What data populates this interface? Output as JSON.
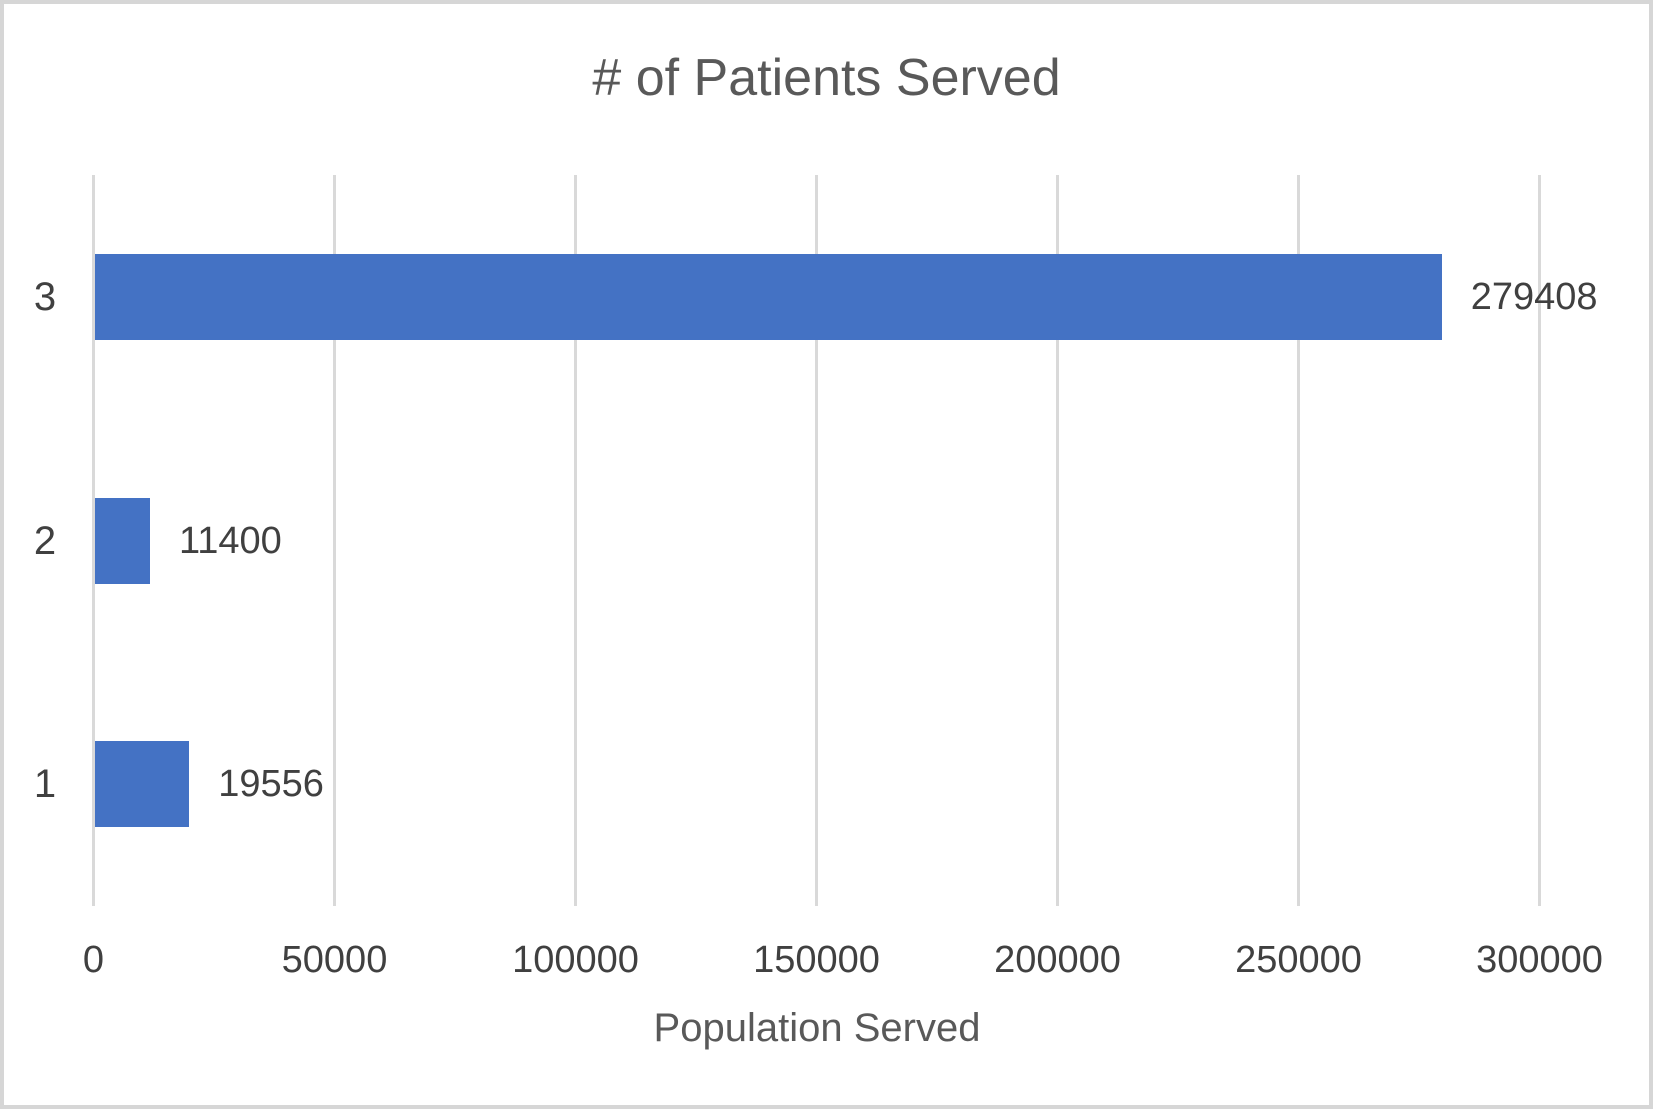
{
  "chart_data": {
    "type": "bar",
    "orientation": "horizontal",
    "title": "# of Patients Served",
    "xlabel": "Population Served",
    "ylabel": "",
    "categories": [
      "1",
      "2",
      "3"
    ],
    "values": [
      19556,
      11400,
      279408
    ],
    "data_labels": [
      19556,
      11400,
      279408
    ],
    "category_order_note": "category 3 displayed as top row, category 1 as bottom row",
    "xlim": [
      0,
      300000
    ],
    "xticks": [
      0,
      50000,
      100000,
      150000,
      200000,
      250000,
      300000
    ],
    "grid": "vertical-only",
    "legend": "none",
    "colors": {
      "bar": "#4472c4",
      "gridline": "#d9d9d9",
      "title_text": "#595959",
      "axis_title_text": "#595959",
      "tick_text": "#404040",
      "data_label_text": "#404040",
      "frame_border": "#d6d6d6"
    }
  }
}
